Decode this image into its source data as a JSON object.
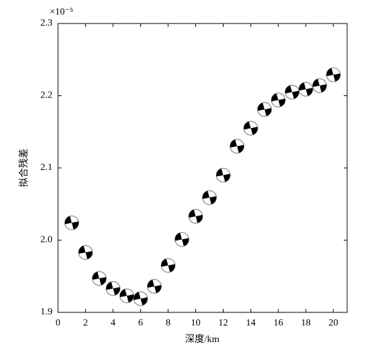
{
  "chart_data": {
    "type": "scatter",
    "y_multiplier": "×10⁻⁵",
    "x_label": "深度/km",
    "y_label": "拟合残差",
    "x": [
      1,
      2,
      3,
      4,
      5,
      6,
      7,
      8,
      9,
      10,
      11,
      12,
      13,
      14,
      15,
      16,
      17,
      18,
      19,
      20
    ],
    "values": [
      2.024,
      1.983,
      1.947,
      1.933,
      1.923,
      1.919,
      1.936,
      1.965,
      2.001,
      2.033,
      2.059,
      2.09,
      2.13,
      2.155,
      2.181,
      2.194,
      2.205,
      2.209,
      2.214,
      2.229
    ],
    "color": "#000000",
    "xlim": [
      0,
      21
    ],
    "xticks": [
      0,
      2,
      4,
      6,
      8,
      10,
      12,
      14,
      16,
      18,
      20
    ],
    "ylim": [
      1.9,
      2.3
    ],
    "yticks": [
      1.9,
      {
        "value": 2,
        "label": "2.0"
      },
      2.1,
      2.2,
      2.3
    ]
  }
}
